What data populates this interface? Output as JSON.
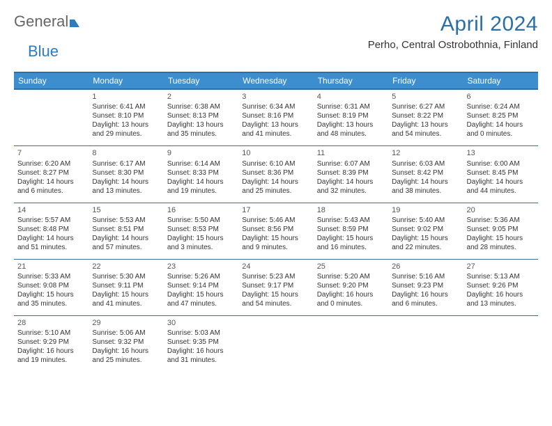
{
  "logo": {
    "part1": "General",
    "part2": "Blue"
  },
  "title": "April 2024",
  "location": "Perho, Central Ostrobothnia, Finland",
  "colors": {
    "header_bg": "#3d8ecf",
    "header_border": "#2e6ea5",
    "title_color": "#2b6fa8",
    "logo_gray": "#666666",
    "logo_blue": "#2e7cc0",
    "text": "#333333",
    "background": "#ffffff"
  },
  "typography": {
    "title_fontsize": 30,
    "location_fontsize": 15,
    "weekday_fontsize": 12,
    "daynum_fontsize": 11,
    "cell_fontsize": 10
  },
  "weekdays": [
    "Sunday",
    "Monday",
    "Tuesday",
    "Wednesday",
    "Thursday",
    "Friday",
    "Saturday"
  ],
  "weeks": [
    [
      null,
      {
        "n": "1",
        "sunrise": "6:41 AM",
        "sunset": "8:10 PM",
        "daylight": "13 hours and 29 minutes."
      },
      {
        "n": "2",
        "sunrise": "6:38 AM",
        "sunset": "8:13 PM",
        "daylight": "13 hours and 35 minutes."
      },
      {
        "n": "3",
        "sunrise": "6:34 AM",
        "sunset": "8:16 PM",
        "daylight": "13 hours and 41 minutes."
      },
      {
        "n": "4",
        "sunrise": "6:31 AM",
        "sunset": "8:19 PM",
        "daylight": "13 hours and 48 minutes."
      },
      {
        "n": "5",
        "sunrise": "6:27 AM",
        "sunset": "8:22 PM",
        "daylight": "13 hours and 54 minutes."
      },
      {
        "n": "6",
        "sunrise": "6:24 AM",
        "sunset": "8:25 PM",
        "daylight": "14 hours and 0 minutes."
      }
    ],
    [
      {
        "n": "7",
        "sunrise": "6:20 AM",
        "sunset": "8:27 PM",
        "daylight": "14 hours and 6 minutes."
      },
      {
        "n": "8",
        "sunrise": "6:17 AM",
        "sunset": "8:30 PM",
        "daylight": "14 hours and 13 minutes."
      },
      {
        "n": "9",
        "sunrise": "6:14 AM",
        "sunset": "8:33 PM",
        "daylight": "14 hours and 19 minutes."
      },
      {
        "n": "10",
        "sunrise": "6:10 AM",
        "sunset": "8:36 PM",
        "daylight": "14 hours and 25 minutes."
      },
      {
        "n": "11",
        "sunrise": "6:07 AM",
        "sunset": "8:39 PM",
        "daylight": "14 hours and 32 minutes."
      },
      {
        "n": "12",
        "sunrise": "6:03 AM",
        "sunset": "8:42 PM",
        "daylight": "14 hours and 38 minutes."
      },
      {
        "n": "13",
        "sunrise": "6:00 AM",
        "sunset": "8:45 PM",
        "daylight": "14 hours and 44 minutes."
      }
    ],
    [
      {
        "n": "14",
        "sunrise": "5:57 AM",
        "sunset": "8:48 PM",
        "daylight": "14 hours and 51 minutes."
      },
      {
        "n": "15",
        "sunrise": "5:53 AM",
        "sunset": "8:51 PM",
        "daylight": "14 hours and 57 minutes."
      },
      {
        "n": "16",
        "sunrise": "5:50 AM",
        "sunset": "8:53 PM",
        "daylight": "15 hours and 3 minutes."
      },
      {
        "n": "17",
        "sunrise": "5:46 AM",
        "sunset": "8:56 PM",
        "daylight": "15 hours and 9 minutes."
      },
      {
        "n": "18",
        "sunrise": "5:43 AM",
        "sunset": "8:59 PM",
        "daylight": "15 hours and 16 minutes."
      },
      {
        "n": "19",
        "sunrise": "5:40 AM",
        "sunset": "9:02 PM",
        "daylight": "15 hours and 22 minutes."
      },
      {
        "n": "20",
        "sunrise": "5:36 AM",
        "sunset": "9:05 PM",
        "daylight": "15 hours and 28 minutes."
      }
    ],
    [
      {
        "n": "21",
        "sunrise": "5:33 AM",
        "sunset": "9:08 PM",
        "daylight": "15 hours and 35 minutes."
      },
      {
        "n": "22",
        "sunrise": "5:30 AM",
        "sunset": "9:11 PM",
        "daylight": "15 hours and 41 minutes."
      },
      {
        "n": "23",
        "sunrise": "5:26 AM",
        "sunset": "9:14 PM",
        "daylight": "15 hours and 47 minutes."
      },
      {
        "n": "24",
        "sunrise": "5:23 AM",
        "sunset": "9:17 PM",
        "daylight": "15 hours and 54 minutes."
      },
      {
        "n": "25",
        "sunrise": "5:20 AM",
        "sunset": "9:20 PM",
        "daylight": "16 hours and 0 minutes."
      },
      {
        "n": "26",
        "sunrise": "5:16 AM",
        "sunset": "9:23 PM",
        "daylight": "16 hours and 6 minutes."
      },
      {
        "n": "27",
        "sunrise": "5:13 AM",
        "sunset": "9:26 PM",
        "daylight": "16 hours and 13 minutes."
      }
    ],
    [
      {
        "n": "28",
        "sunrise": "5:10 AM",
        "sunset": "9:29 PM",
        "daylight": "16 hours and 19 minutes."
      },
      {
        "n": "29",
        "sunrise": "5:06 AM",
        "sunset": "9:32 PM",
        "daylight": "16 hours and 25 minutes."
      },
      {
        "n": "30",
        "sunrise": "5:03 AM",
        "sunset": "9:35 PM",
        "daylight": "16 hours and 31 minutes."
      },
      null,
      null,
      null,
      null
    ]
  ],
  "labels": {
    "sunrise_prefix": "Sunrise: ",
    "sunset_prefix": "Sunset: ",
    "daylight_prefix": "Daylight: "
  }
}
